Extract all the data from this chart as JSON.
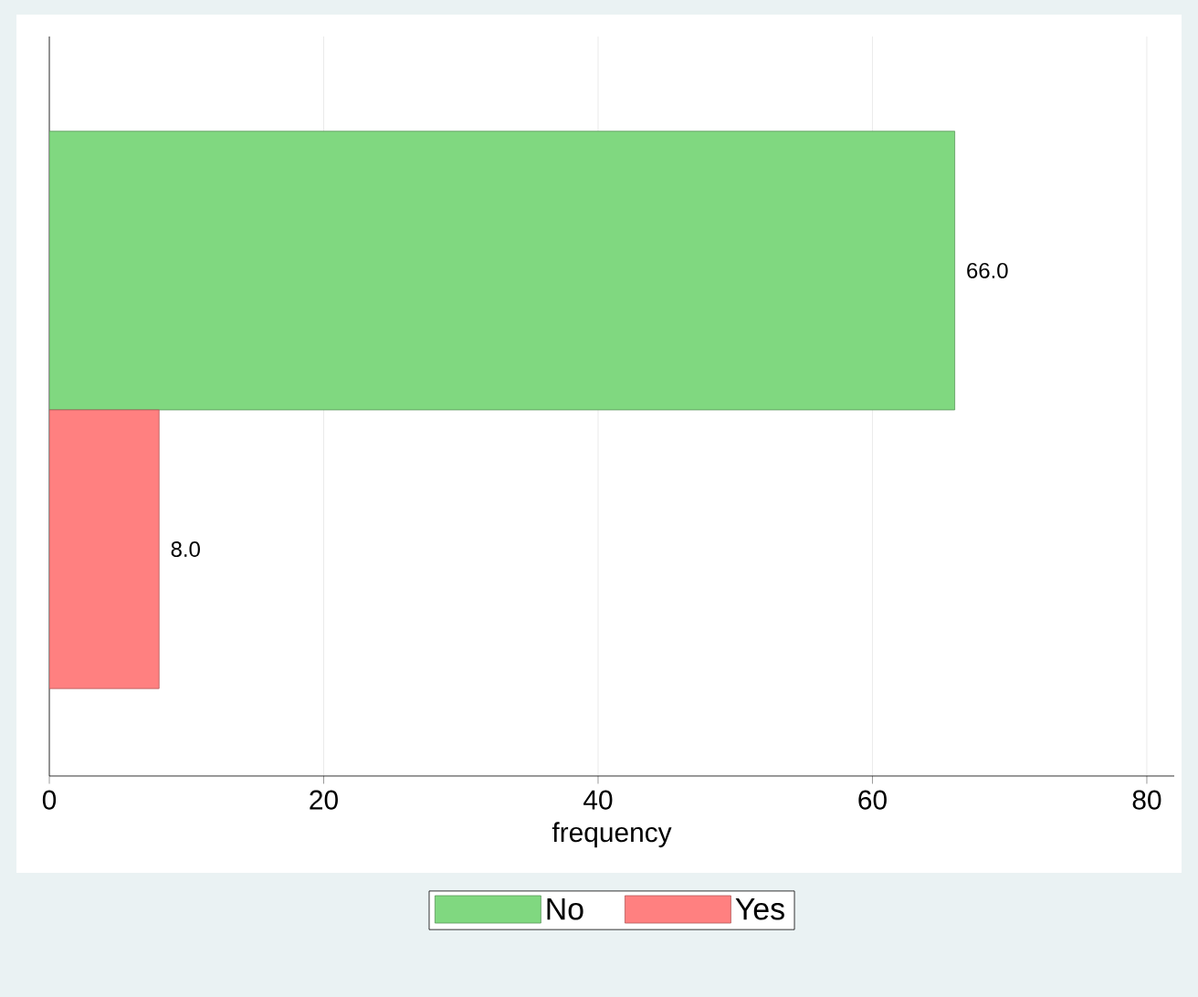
{
  "chart_data": {
    "type": "bar",
    "orientation": "horizontal",
    "xlabel": "frequency",
    "categories": [
      null
    ],
    "series": [
      {
        "name": "No",
        "color": "#80d880",
        "values": [
          66
        ],
        "value_labels": [
          "66.0"
        ]
      },
      {
        "name": "Yes",
        "color": "#ff8080",
        "values": [
          8
        ],
        "value_labels": [
          "8.0"
        ]
      }
    ],
    "xlim": [
      0,
      82
    ],
    "xticks": [
      0,
      20,
      40,
      60,
      80
    ],
    "grid": "x",
    "legend": "bottom"
  }
}
